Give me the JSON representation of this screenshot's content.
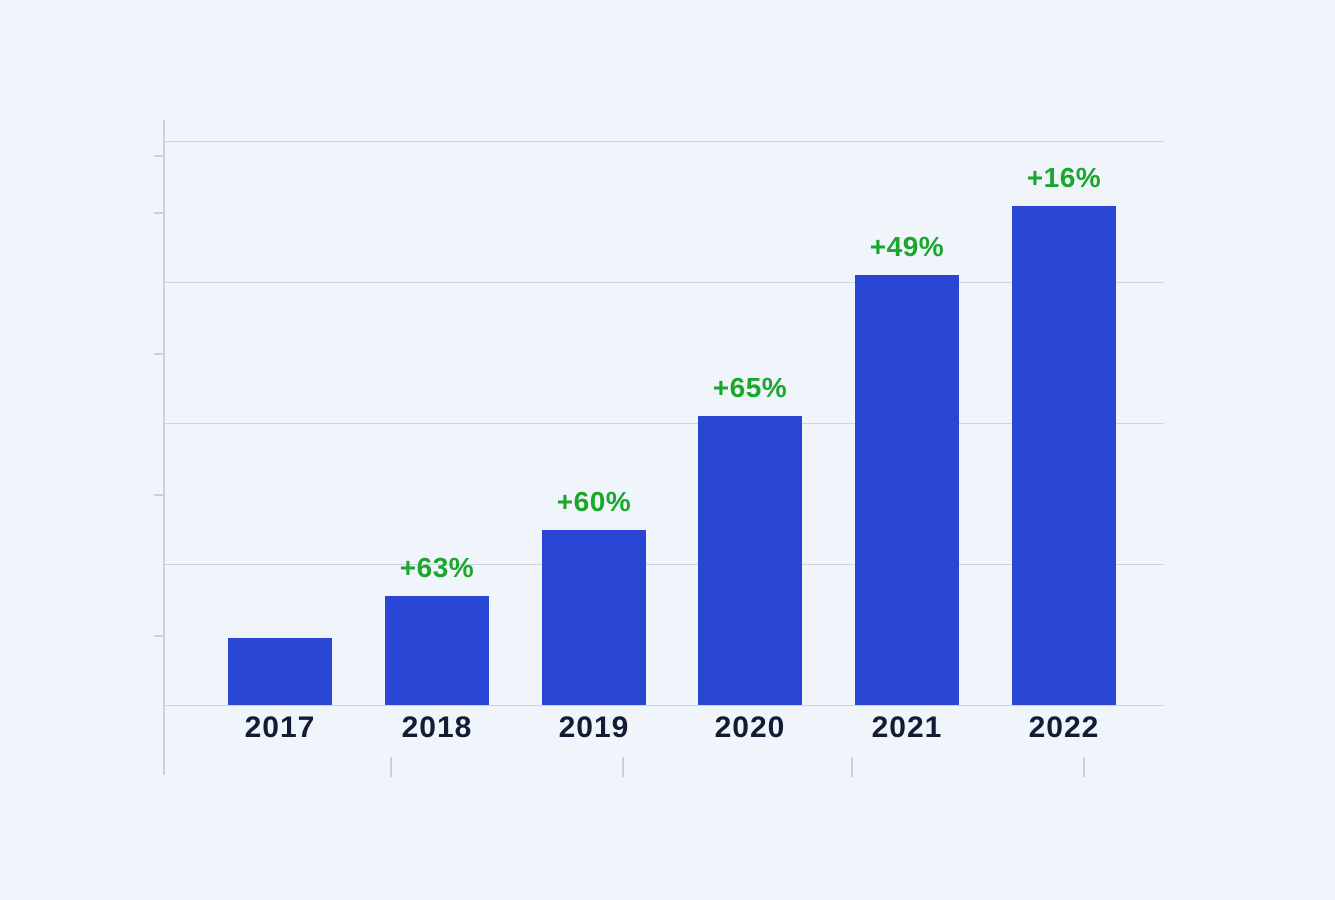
{
  "chart_data": {
    "type": "bar",
    "title": "",
    "xlabel": "",
    "ylabel": "",
    "categories": [
      "2017",
      "2018",
      "2019",
      "2020",
      "2021",
      "2022"
    ],
    "values": [
      100,
      163,
      261,
      430,
      641,
      743
    ],
    "growth_labels": [
      "",
      "+63%",
      "+60%",
      "+65%",
      "+49%",
      "+16%"
    ],
    "ylim": [
      0,
      840
    ],
    "grid": "horizontal",
    "legend": "none",
    "bar_color": "#2a46d4",
    "growth_label_color": "#1ba62c",
    "axis_color": "#c9d0de",
    "year_label_color": "#131c33",
    "background_color": "#f0f4fb"
  }
}
